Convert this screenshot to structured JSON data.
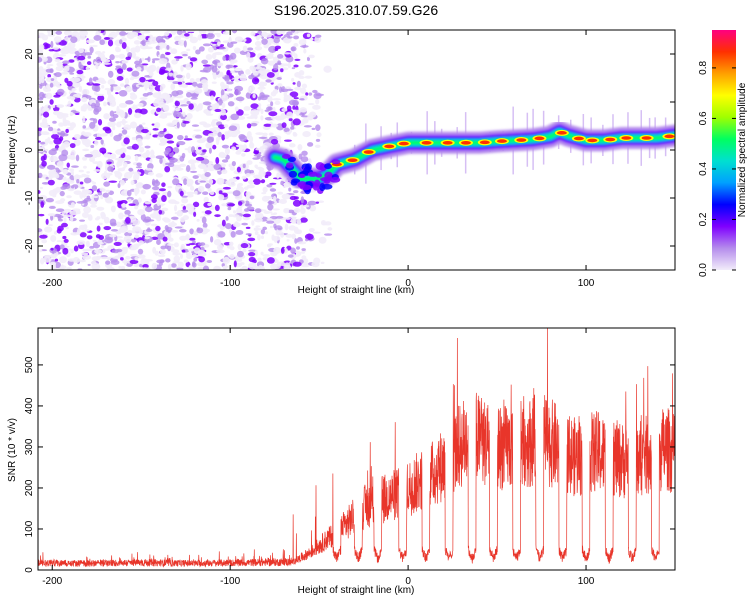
{
  "title": "S196.2025.310.07.59.G26",
  "chart_data": [
    {
      "type": "heatmap",
      "xlabel": "Height of straight line (km)",
      "ylabel": "Frequency (Hz)",
      "xlim": [
        -208,
        150
      ],
      "ylim": [
        -25,
        25
      ],
      "xticks": [
        -200,
        -100,
        0,
        100
      ],
      "yticks": [
        -20,
        -10,
        0,
        10,
        20
      ],
      "colorbar": {
        "label": "Normalized spectral amplitude",
        "range": [
          0,
          0.95
        ],
        "ticks": [
          0.0,
          0.2,
          0.4,
          0.6,
          0.8
        ],
        "colors": [
          "#f2ecfa",
          "#b58cec",
          "#7f00ff",
          "#0000ff",
          "#00a0ff",
          "#00e0d0",
          "#00ff60",
          "#a0ff00",
          "#ffff00",
          "#ffa000",
          "#ff3000",
          "#ff0080"
        ]
      },
      "ridge": {
        "x": [
          -75,
          -70,
          -65,
          -60,
          -55,
          -50,
          -45,
          -40,
          -35,
          -30,
          -25,
          -20,
          -10,
          0,
          10,
          20,
          30,
          40,
          50,
          60,
          70,
          80,
          85,
          90,
          100,
          110,
          120,
          130,
          140,
          150
        ],
        "freq": [
          -1.5,
          -2,
          -4,
          -6,
          -6,
          -6,
          -5,
          -3,
          -2.5,
          -2,
          -1,
          0,
          0.8,
          1.5,
          1.5,
          1.5,
          1.5,
          1.5,
          1.8,
          2,
          2.2,
          2.8,
          3.8,
          3,
          2,
          2,
          2.5,
          2.5,
          2.5,
          3
        ]
      },
      "noise_region": [
        -208,
        -65
      ]
    },
    {
      "type": "line",
      "xlabel": "Height of straight line (km)",
      "ylabel": "SNR (10 * v/v)",
      "xlim": [
        -208,
        150
      ],
      "ylim": [
        0,
        590
      ],
      "xticks": [
        -200,
        -100,
        0,
        100
      ],
      "yticks": [
        0,
        100,
        200,
        300,
        400,
        500
      ],
      "color": "#e8352a",
      "series": [
        {
          "name": "SNR",
          "x": [
            -208,
            -180,
            -150,
            -120,
            -90,
            -65,
            -55,
            -45,
            -35,
            -25,
            -15,
            -5,
            5,
            15,
            25,
            35,
            45,
            55,
            65,
            75,
            85,
            95,
            105,
            115,
            125,
            135,
            145,
            150
          ],
          "values": [
            20,
            18,
            20,
            18,
            20,
            22,
            50,
            90,
            130,
            180,
            200,
            220,
            250,
            280,
            330,
            390,
            360,
            350,
            360,
            380,
            350,
            320,
            340,
            320,
            310,
            330,
            350,
            330
          ]
        }
      ],
      "dips_x": [
        -40,
        -28,
        -17,
        -3,
        10,
        23,
        36,
        48,
        61,
        74,
        87,
        100,
        113,
        126,
        139
      ]
    }
  ]
}
